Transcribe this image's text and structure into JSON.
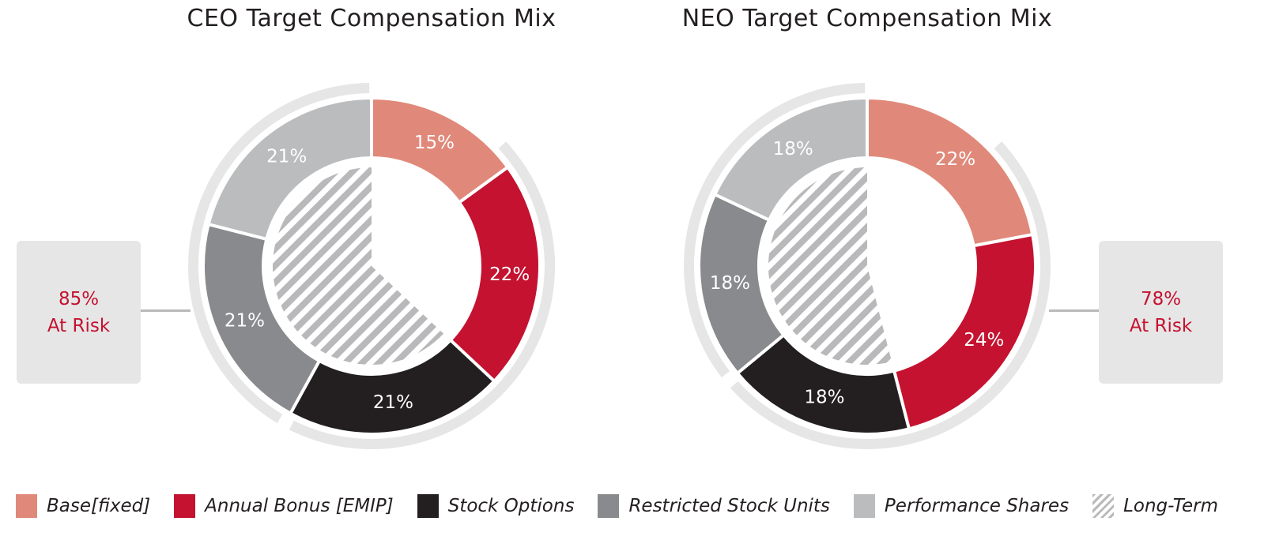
{
  "chart_data": [
    {
      "type": "pie",
      "title": "CEO Target Compensation Mix",
      "categories": [
        "Base[fixed]",
        "Annual Bonus [EMIP]",
        "Stock Options",
        "Restricted Stock Units",
        "Performance Shares"
      ],
      "values": [
        15,
        22,
        21,
        21,
        21
      ],
      "labels": [
        "15%",
        "22%",
        "21%",
        "21%",
        "21%"
      ],
      "long_term_percent": 63,
      "at_risk_value": "85%",
      "at_risk_label": "At Risk",
      "at_risk_side": "left"
    },
    {
      "type": "pie",
      "title": "NEO Target Compensation Mix",
      "categories": [
        "Base[fixed]",
        "Annual Bonus [EMIP]",
        "Stock Options",
        "Restricted Stock Units",
        "Performance Shares"
      ],
      "values": [
        22,
        24,
        18,
        18,
        18
      ],
      "labels": [
        "22%",
        "24%",
        "18%",
        "18%",
        "18%"
      ],
      "long_term_percent": 54,
      "at_risk_value": "78%",
      "at_risk_label": "At Risk",
      "at_risk_side": "right"
    }
  ],
  "colors": {
    "base": "#e0897a",
    "bonus": "#c41230",
    "options": "#231f20",
    "rsu": "#898a8d",
    "performance": "#bbbcbe",
    "ring": "#e6e6e6",
    "hatch": "#b9b9bb",
    "risk_text": "#c41230"
  },
  "legend": [
    {
      "label": "Base[fixed]",
      "color": "#e0897a"
    },
    {
      "label": "Annual Bonus [EMIP]",
      "color": "#c41230"
    },
    {
      "label": "Stock Options",
      "color": "#231f20"
    },
    {
      "label": "Restricted Stock Units",
      "color": "#898a8d"
    },
    {
      "label": "Performance Shares",
      "color": "#bbbcbe"
    },
    {
      "label": "Long-Term",
      "pattern": "hatch"
    }
  ]
}
